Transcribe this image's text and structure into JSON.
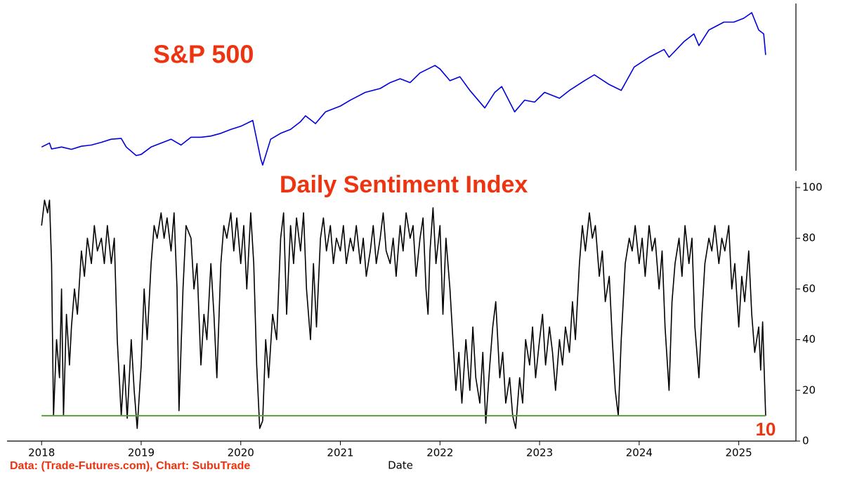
{
  "chart_data": [
    {
      "type": "line",
      "title": "S&P 500",
      "color": "#0000dd",
      "xlim": [
        2017.653,
        2025.574
      ],
      "ylim": [
        2057,
        6378
      ],
      "x": [
        2018.0,
        2018.08,
        2018.1,
        2018.2,
        2018.3,
        2018.4,
        2018.5,
        2018.6,
        2018.7,
        2018.8,
        2018.85,
        2018.95,
        2019.0,
        2019.1,
        2019.2,
        2019.3,
        2019.4,
        2019.5,
        2019.6,
        2019.7,
        2019.8,
        2019.9,
        2020.0,
        2020.12,
        2020.2,
        2020.22,
        2020.3,
        2020.4,
        2020.5,
        2020.6,
        2020.65,
        2020.75,
        2020.85,
        2021.0,
        2021.1,
        2021.25,
        2021.4,
        2021.5,
        2021.6,
        2021.7,
        2021.8,
        2021.95,
        2022.0,
        2022.1,
        2022.2,
        2022.3,
        2022.45,
        2022.55,
        2022.62,
        2022.75,
        2022.85,
        2022.95,
        2023.05,
        2023.2,
        2023.3,
        2023.45,
        2023.55,
        2023.7,
        2023.82,
        2023.95,
        2024.1,
        2024.25,
        2024.3,
        2024.45,
        2024.55,
        2024.6,
        2024.7,
        2024.85,
        2024.95,
        2025.05,
        2025.13,
        2025.2,
        2025.25,
        2025.27
      ],
      "values": [
        2700,
        2800,
        2650,
        2700,
        2640,
        2720,
        2750,
        2820,
        2900,
        2920,
        2700,
        2480,
        2510,
        2700,
        2800,
        2900,
        2750,
        2950,
        2950,
        2980,
        3050,
        3150,
        3230,
        3380,
        2400,
        2237,
        2900,
        3050,
        3150,
        3350,
        3500,
        3300,
        3600,
        3750,
        3900,
        4100,
        4200,
        4350,
        4450,
        4350,
        4600,
        4790,
        4700,
        4400,
        4500,
        4150,
        3700,
        4100,
        4250,
        3600,
        3900,
        3850,
        4100,
        3950,
        4150,
        4400,
        4550,
        4300,
        4150,
        4750,
        5000,
        5200,
        5000,
        5400,
        5600,
        5300,
        5700,
        5900,
        5900,
        6000,
        6144,
        5700,
        5600,
        5060
      ]
    },
    {
      "type": "line",
      "title": "Daily Sentiment Index",
      "color": "#000000",
      "xlabel": "Date",
      "xlim": [
        2017.653,
        2025.574
      ],
      "xticks": [
        2018,
        2019,
        2020,
        2021,
        2022,
        2023,
        2024,
        2025
      ],
      "ylim": [
        0,
        102.5
      ],
      "yticks": [
        0,
        20,
        40,
        60,
        80,
        100
      ],
      "hline": {
        "value": 10,
        "color": "#5a9e3a"
      },
      "x": [
        2018.0,
        2018.03,
        2018.06,
        2018.08,
        2018.1,
        2018.12,
        2018.15,
        2018.18,
        2018.2,
        2018.22,
        2018.25,
        2018.28,
        2018.3,
        2018.33,
        2018.36,
        2018.4,
        2018.43,
        2018.46,
        2018.5,
        2018.53,
        2018.56,
        2018.6,
        2018.63,
        2018.66,
        2018.7,
        2018.73,
        2018.76,
        2018.8,
        2018.83,
        2018.86,
        2018.9,
        2018.93,
        2018.96,
        2019.0,
        2019.03,
        2019.06,
        2019.1,
        2019.13,
        2019.16,
        2019.2,
        2019.23,
        2019.26,
        2019.3,
        2019.33,
        2019.36,
        2019.38,
        2019.42,
        2019.45,
        2019.5,
        2019.53,
        2019.56,
        2019.6,
        2019.63,
        2019.66,
        2019.7,
        2019.73,
        2019.76,
        2019.8,
        2019.83,
        2019.86,
        2019.9,
        2019.93,
        2019.96,
        2020.0,
        2020.03,
        2020.06,
        2020.1,
        2020.13,
        2020.16,
        2020.19,
        2020.22,
        2020.25,
        2020.28,
        2020.32,
        2020.36,
        2020.4,
        2020.43,
        2020.46,
        2020.5,
        2020.53,
        2020.56,
        2020.6,
        2020.63,
        2020.66,
        2020.7,
        2020.73,
        2020.76,
        2020.8,
        2020.83,
        2020.86,
        2020.9,
        2020.93,
        2020.96,
        2021.0,
        2021.03,
        2021.06,
        2021.1,
        2021.13,
        2021.16,
        2021.2,
        2021.23,
        2021.26,
        2021.3,
        2021.33,
        2021.36,
        2021.4,
        2021.43,
        2021.46,
        2021.5,
        2021.53,
        2021.56,
        2021.6,
        2021.63,
        2021.66,
        2021.7,
        2021.73,
        2021.76,
        2021.8,
        2021.83,
        2021.86,
        2021.88,
        2021.9,
        2021.93,
        2021.96,
        2022.0,
        2022.03,
        2022.06,
        2022.1,
        2022.13,
        2022.16,
        2022.19,
        2022.22,
        2022.26,
        2022.3,
        2022.33,
        2022.36,
        2022.4,
        2022.43,
        2022.46,
        2022.5,
        2022.53,
        2022.56,
        2022.6,
        2022.63,
        2022.66,
        2022.7,
        2022.73,
        2022.76,
        2022.8,
        2022.83,
        2022.86,
        2022.9,
        2022.93,
        2022.96,
        2023.0,
        2023.03,
        2023.06,
        2023.1,
        2023.13,
        2023.16,
        2023.2,
        2023.23,
        2023.26,
        2023.3,
        2023.33,
        2023.36,
        2023.4,
        2023.43,
        2023.46,
        2023.5,
        2023.53,
        2023.56,
        2023.6,
        2023.63,
        2023.66,
        2023.7,
        2023.73,
        2023.76,
        2023.79,
        2023.82,
        2023.86,
        2023.9,
        2023.93,
        2023.96,
        2024.0,
        2024.03,
        2024.06,
        2024.1,
        2024.13,
        2024.16,
        2024.2,
        2024.23,
        2024.26,
        2024.3,
        2024.33,
        2024.36,
        2024.4,
        2024.43,
        2024.46,
        2024.5,
        2024.53,
        2024.56,
        2024.6,
        2024.63,
        2024.66,
        2024.7,
        2024.73,
        2024.76,
        2024.8,
        2024.83,
        2024.86,
        2024.9,
        2024.93,
        2024.96,
        2025.0,
        2025.03,
        2025.06,
        2025.1,
        2025.13,
        2025.16,
        2025.2,
        2025.22,
        2025.24,
        2025.27
      ],
      "values": [
        85,
        95,
        90,
        95,
        70,
        10,
        40,
        25,
        60,
        10,
        50,
        30,
        45,
        60,
        50,
        75,
        65,
        80,
        70,
        85,
        75,
        80,
        70,
        85,
        70,
        80,
        40,
        10,
        30,
        9,
        40,
        20,
        5,
        30,
        60,
        40,
        70,
        85,
        80,
        90,
        80,
        88,
        75,
        90,
        60,
        12,
        60,
        85,
        80,
        60,
        70,
        30,
        50,
        40,
        70,
        50,
        25,
        70,
        85,
        80,
        90,
        75,
        88,
        70,
        85,
        60,
        90,
        70,
        30,
        5,
        8,
        40,
        25,
        50,
        40,
        80,
        90,
        50,
        85,
        70,
        88,
        75,
        90,
        60,
        40,
        70,
        45,
        80,
        88,
        75,
        85,
        70,
        80,
        75,
        85,
        70,
        80,
        75,
        85,
        70,
        80,
        65,
        75,
        85,
        70,
        80,
        90,
        75,
        70,
        80,
        65,
        85,
        75,
        90,
        80,
        85,
        65,
        80,
        88,
        60,
        50,
        75,
        92,
        70,
        85,
        50,
        80,
        60,
        40,
        20,
        35,
        15,
        40,
        20,
        45,
        25,
        15,
        35,
        7,
        30,
        45,
        55,
        25,
        35,
        15,
        25,
        10,
        5,
        25,
        15,
        40,
        30,
        45,
        25,
        40,
        50,
        30,
        45,
        35,
        20,
        40,
        30,
        45,
        35,
        55,
        40,
        70,
        85,
        75,
        90,
        80,
        85,
        65,
        75,
        55,
        65,
        40,
        20,
        10,
        40,
        70,
        80,
        75,
        85,
        70,
        80,
        65,
        85,
        75,
        80,
        60,
        75,
        45,
        20,
        55,
        70,
        80,
        65,
        85,
        70,
        80,
        45,
        25,
        50,
        70,
        80,
        75,
        85,
        70,
        80,
        75,
        85,
        60,
        70,
        45,
        65,
        55,
        75,
        50,
        35,
        45,
        28,
        47,
        10
      ]
    }
  ],
  "source": "Data: (Trade-Futures.com), Chart: SubuTrade"
}
